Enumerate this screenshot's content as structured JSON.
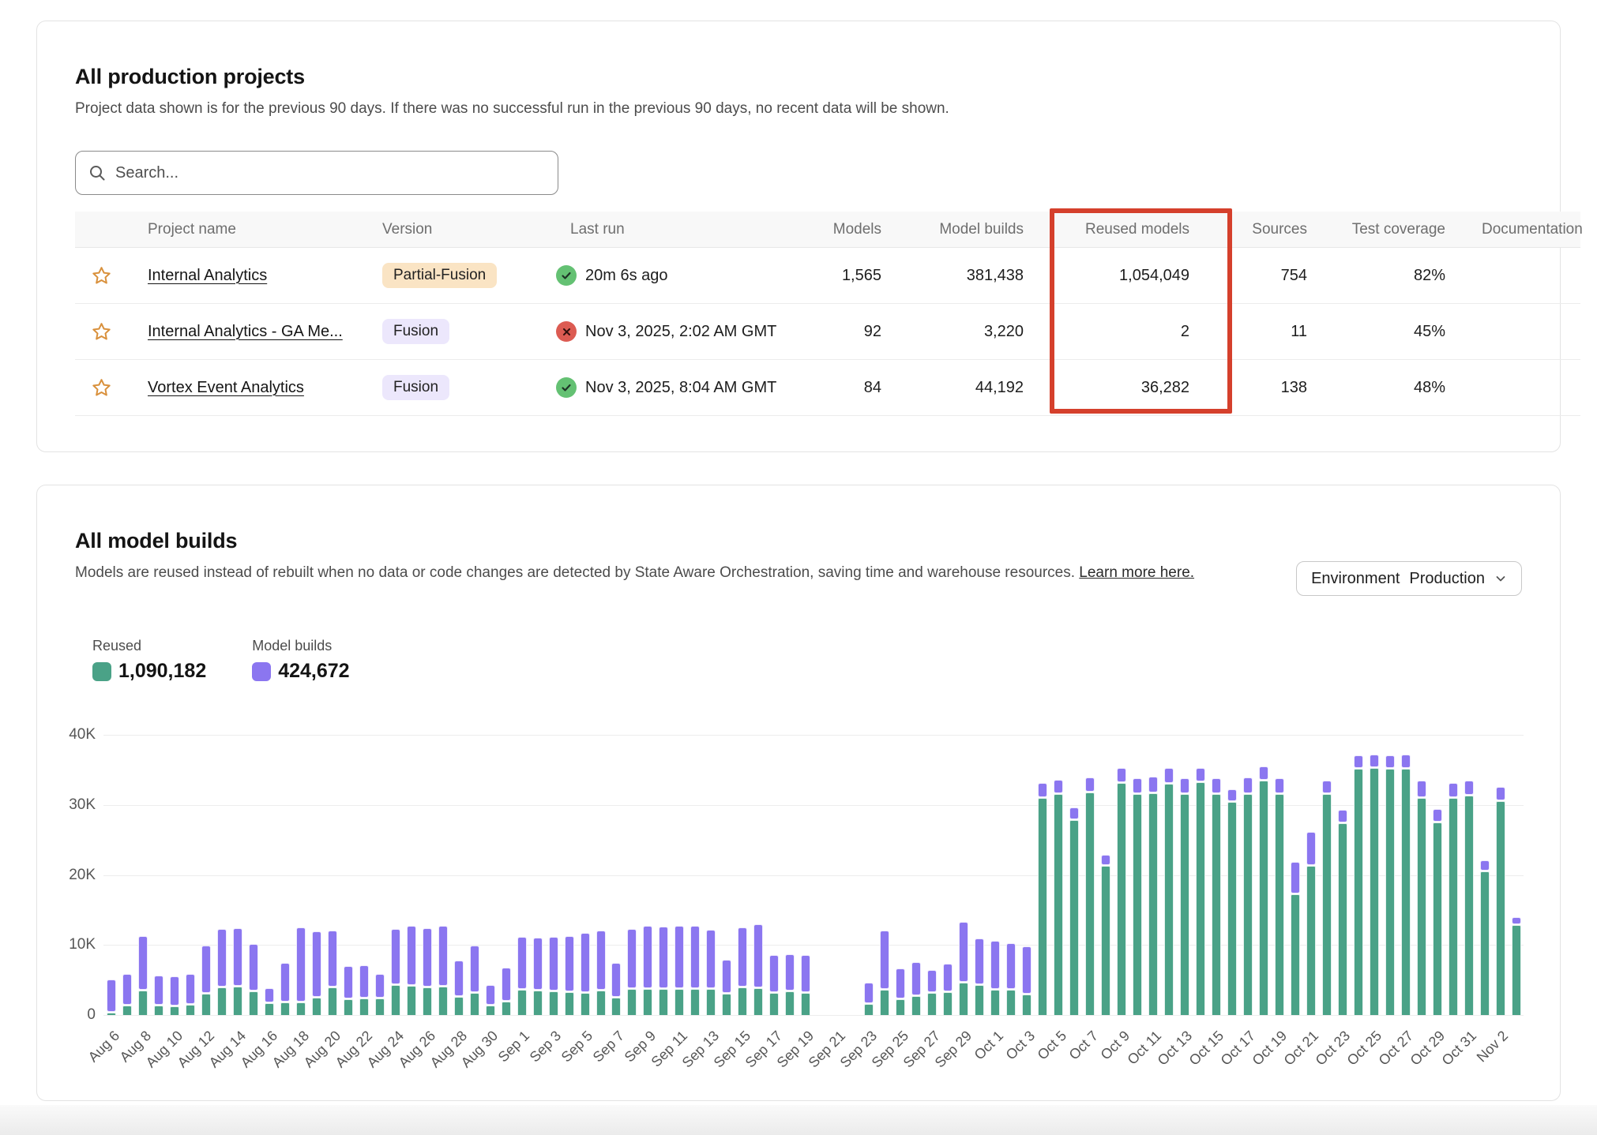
{
  "projects_card": {
    "title": "All production projects",
    "subtitle": "Project data shown is for the previous 90 days. If there was no successful run in the previous 90 days, no recent data will be shown.",
    "search_placeholder": "Search...",
    "columns": {
      "name": "Project name",
      "version": "Version",
      "last_run": "Last run",
      "models": "Models",
      "model_builds": "Model builds",
      "reused_models": "Reused models",
      "sources": "Sources",
      "test_coverage": "Test coverage",
      "documentation": "Documentation"
    },
    "rows": [
      {
        "name": "Internal Analytics",
        "version": "Partial-Fusion",
        "status": "success",
        "last_run": "20m 6s ago",
        "models": "1,565",
        "model_builds": "381,438",
        "reused_models": "1,054,049",
        "sources": "754",
        "test_coverage": "82%"
      },
      {
        "name": "Internal Analytics - GA Me...",
        "version": "Fusion",
        "status": "error",
        "last_run": "Nov 3, 2025, 2:02 AM GMT",
        "models": "92",
        "model_builds": "3,220",
        "reused_models": "2",
        "sources": "11",
        "test_coverage": "45%"
      },
      {
        "name": "Vortex Event Analytics",
        "version": "Fusion",
        "status": "success",
        "last_run": "Nov 3, 2025, 8:04 AM GMT",
        "models": "84",
        "model_builds": "44,192",
        "reused_models": "36,282",
        "sources": "138",
        "test_coverage": "48%"
      }
    ],
    "highlight_color": "#d5402c"
  },
  "builds_card": {
    "title": "All model builds",
    "subtitle": "Models are reused instead of rebuilt when no data or code changes are detected by State Aware Orchestration, saving time and warehouse resources.",
    "link_text": "Learn more here.",
    "env_label": "Environment",
    "env_value": "Production",
    "legend": [
      {
        "label": "Reused",
        "value": "1,090,182",
        "color": "#4aa287"
      },
      {
        "label": "Model builds",
        "value": "424,672",
        "color": "#8b76f0"
      }
    ]
  },
  "chart_data": {
    "type": "bar",
    "stacked": true,
    "title": "All model builds",
    "legend_position": "top-left",
    "grid": true,
    "ylim": [
      0,
      40000
    ],
    "y_ticks": [
      "40K",
      "30K",
      "20K",
      "10K",
      "0"
    ],
    "x_tick_every": 2,
    "x": [
      "Aug 6",
      "Aug 7",
      "Aug 8",
      "Aug 9",
      "Aug 10",
      "Aug 11",
      "Aug 12",
      "Aug 13",
      "Aug 14",
      "Aug 15",
      "Aug 16",
      "Aug 17",
      "Aug 18",
      "Aug 19",
      "Aug 20",
      "Aug 21",
      "Aug 22",
      "Aug 23",
      "Aug 24",
      "Aug 25",
      "Aug 26",
      "Aug 27",
      "Aug 28",
      "Aug 29",
      "Aug 30",
      "Aug 31",
      "Sep 1",
      "Sep 2",
      "Sep 3",
      "Sep 4",
      "Sep 5",
      "Sep 6",
      "Sep 7",
      "Sep 8",
      "Sep 9",
      "Sep 10",
      "Sep 11",
      "Sep 12",
      "Sep 13",
      "Sep 14",
      "Sep 15",
      "Sep 16",
      "Sep 17",
      "Sep 18",
      "Sep 19",
      "Sep 20",
      "Sep 21",
      "Sep 22",
      "Sep 23",
      "Sep 24",
      "Sep 25",
      "Sep 26",
      "Sep 27",
      "Sep 28",
      "Sep 29",
      "Sep 30",
      "Oct 1",
      "Oct 2",
      "Oct 3",
      "Oct 4",
      "Oct 5",
      "Oct 6",
      "Oct 7",
      "Oct 8",
      "Oct 9",
      "Oct 10",
      "Oct 11",
      "Oct 12",
      "Oct 13",
      "Oct 14",
      "Oct 15",
      "Oct 16",
      "Oct 17",
      "Oct 18",
      "Oct 19",
      "Oct 20",
      "Oct 21",
      "Oct 22",
      "Oct 23",
      "Oct 24",
      "Oct 25",
      "Oct 26",
      "Oct 27",
      "Oct 28",
      "Oct 29",
      "Oct 30",
      "Oct 31",
      "Nov 1",
      "Nov 2",
      "Nov 3"
    ],
    "series": [
      {
        "name": "Reused",
        "color": "#4aa287",
        "values": [
          300,
          1300,
          3500,
          1300,
          1200,
          1500,
          3000,
          4000,
          4100,
          3400,
          1700,
          1800,
          1800,
          2500,
          3900,
          2300,
          2400,
          2400,
          4300,
          4200,
          4000,
          4100,
          2600,
          3200,
          1300,
          1900,
          3600,
          3500,
          3400,
          3300,
          3200,
          3500,
          2500,
          3700,
          3700,
          3700,
          3700,
          3700,
          3700,
          3000,
          4000,
          3800,
          3200,
          3400,
          3200,
          0,
          0,
          0,
          1600,
          3600,
          2300,
          2700,
          3200,
          3300,
          4600,
          4300,
          3600,
          3600,
          2900,
          31000,
          31600,
          27800,
          31800,
          21300,
          33100,
          31600,
          31700,
          33000,
          31600,
          33200,
          31600,
          30400,
          31600,
          33500,
          31600,
          17200,
          21300,
          31500,
          27400,
          35200,
          35300,
          35200,
          35200,
          31000,
          27500,
          31000,
          31300,
          20500,
          30500,
          12800
        ]
      },
      {
        "name": "Model builds",
        "color": "#8b76f0",
        "values": [
          4700,
          4400,
          7700,
          4200,
          4200,
          4300,
          6800,
          8200,
          8200,
          6600,
          2000,
          5500,
          10600,
          9300,
          8100,
          4600,
          4600,
          3300,
          7900,
          8400,
          8300,
          8500,
          5100,
          6600,
          2900,
          4700,
          7400,
          7400,
          7700,
          7900,
          8400,
          8400,
          4800,
          8500,
          8900,
          8800,
          8900,
          8900,
          8400,
          4800,
          8400,
          9000,
          5300,
          5200,
          5200,
          0,
          0,
          0,
          2900,
          8300,
          4200,
          4700,
          3100,
          3900,
          8600,
          6500,
          6900,
          6600,
          6800,
          2000,
          1900,
          1700,
          2000,
          1500,
          2100,
          2100,
          2200,
          2200,
          2100,
          2000,
          2100,
          1700,
          2200,
          1900,
          2100,
          4500,
          4700,
          1900,
          1800,
          1800,
          1800,
          1800,
          1900,
          2300,
          1800,
          2000,
          2000,
          1500,
          2000,
          1100
        ]
      }
    ]
  }
}
